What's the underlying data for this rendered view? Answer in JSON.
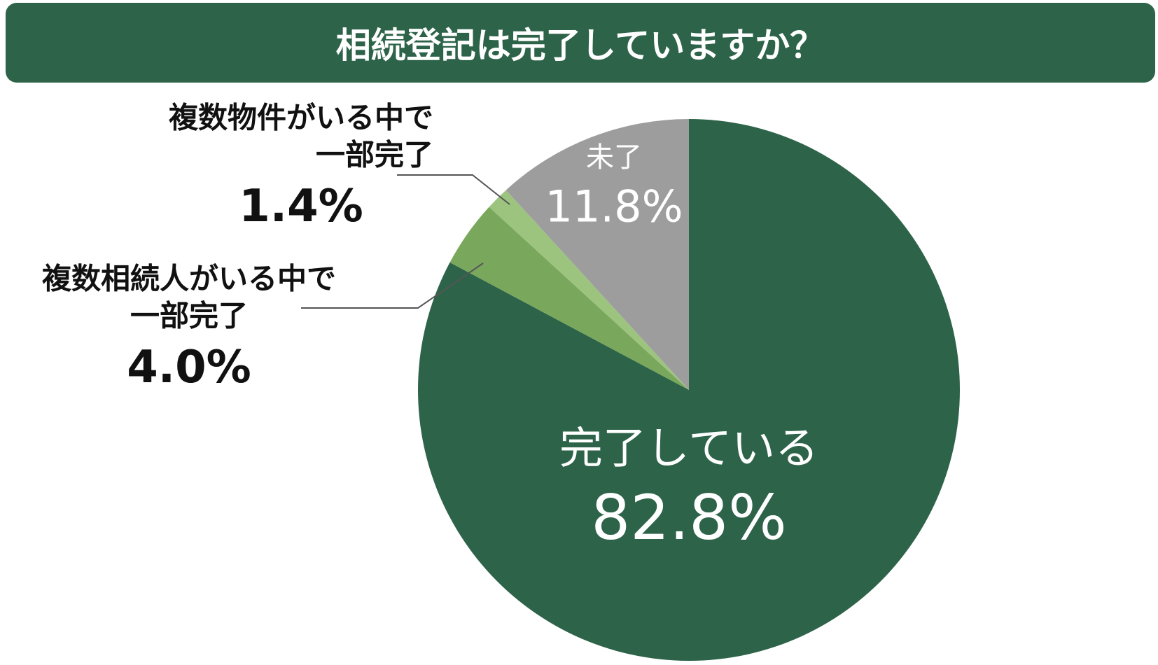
{
  "chart_data": {
    "type": "pie",
    "title": "相続登記は完了していますか？",
    "categories": [
      "完了している",
      "複数相続人がいる中で\n一部完了",
      "複数物件がいる中で\n一部完了",
      "未了"
    ],
    "values": [
      82.8,
      4.0,
      1.4,
      11.8
    ],
    "value_labels": [
      "82.8%",
      "4.0%",
      "1.4%",
      "11.8%"
    ],
    "colors": [
      "#2d6349",
      "#79a85c",
      "#9cc47f",
      "#9d9d9d"
    ]
  }
}
